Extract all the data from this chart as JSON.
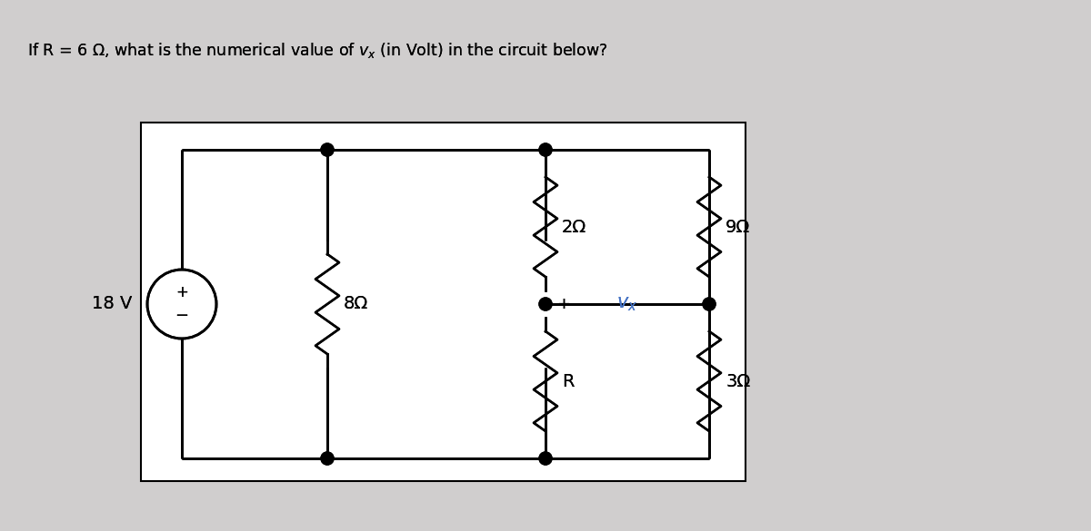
{
  "title": "If R = 6 Ω, what is the numerical value of vₓ (in Volt) in the circuit below?",
  "bg_color": "#d0cece",
  "circuit_bg": "#ffffff",
  "line_color": "#000000",
  "resistor_color": "#000000",
  "label_color_black": "#000000",
  "label_color_blue": "#4472c4",
  "source_voltage": "18 V",
  "resistors": [
    "8Ω",
    "2Ω",
    "9Ω",
    "R",
    "3Ω"
  ],
  "vx_label": "vₓ",
  "plus_minus": [
    "+",
    "−"
  ],
  "title_fontsize": 13,
  "label_fontsize": 14
}
